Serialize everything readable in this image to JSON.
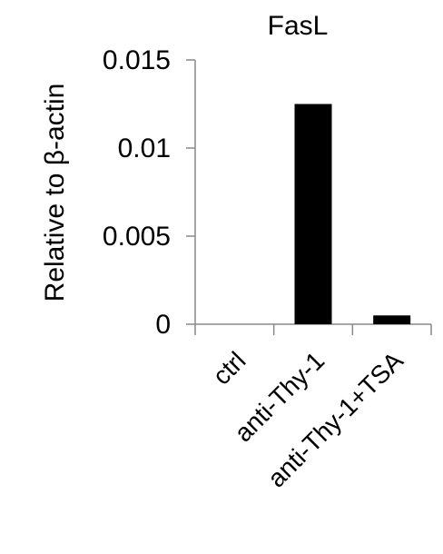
{
  "chart_data": {
    "type": "bar",
    "title": "FasL",
    "ylabel": "Relative to β-actin",
    "xlabel": "",
    "categories": [
      "ctrl",
      "anti-Thy-1",
      "anti-Thy-1+TSA"
    ],
    "values": [
      0,
      0.0125,
      0.0005
    ],
    "ylim": [
      0,
      0.015
    ],
    "yticks": [
      {
        "value": 0,
        "label": "0"
      },
      {
        "value": 0.005,
        "label": "0.005"
      },
      {
        "value": 0.01,
        "label": "0.01"
      },
      {
        "value": 0.015,
        "label": "0.015"
      }
    ],
    "bar_color": "#000000",
    "grid": false,
    "legend": "none"
  }
}
